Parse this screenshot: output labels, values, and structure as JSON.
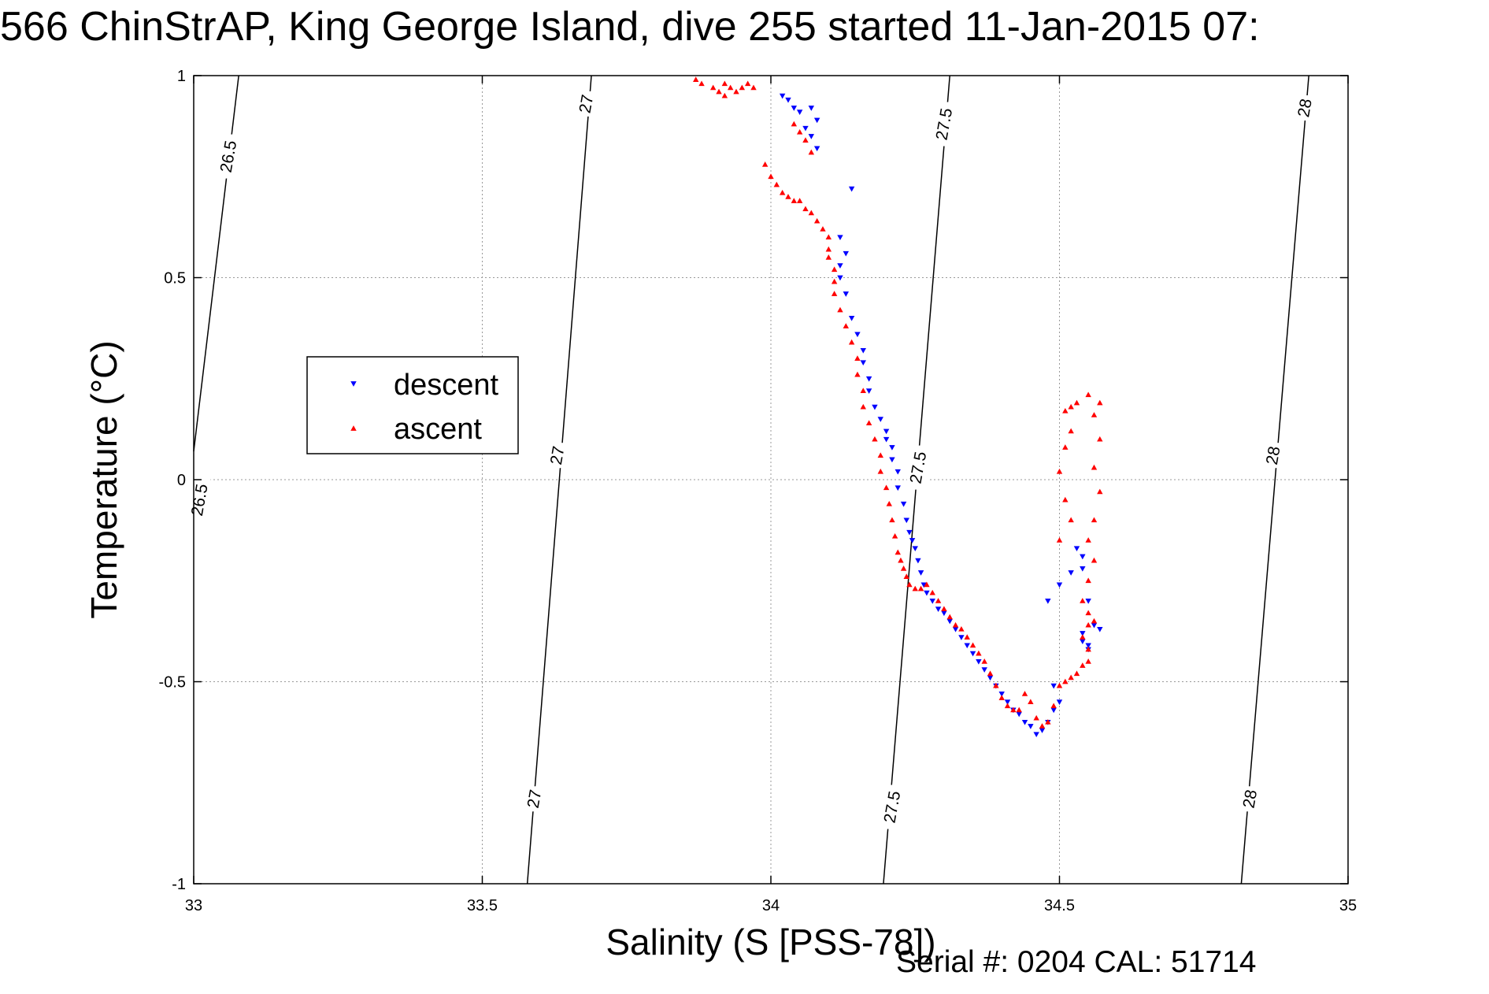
{
  "title": "566 ChinStrAP, King George Island, dive 255 started 11-Jan-2015 07:",
  "footer": "Serial #: 0204  CAL: 51714",
  "colors": {
    "descent": "#0000ff",
    "ascent": "#ff0000",
    "grid": "#999999",
    "contour": "#000000"
  },
  "chart_data": {
    "type": "scatter",
    "xlabel": "Salinity (S [PSS-78])",
    "ylabel": "Temperature (°C)",
    "xlim": [
      33,
      35
    ],
    "ylim": [
      -1,
      1
    ],
    "xticks": [
      "33",
      "33.5",
      "34",
      "34.5",
      "35"
    ],
    "yticks": [
      "1",
      "0.5",
      "0",
      "-0.5",
      "-1"
    ],
    "grid": true,
    "legend": {
      "placement": "left-center",
      "entries": [
        "descent",
        "ascent"
      ]
    },
    "contours": [
      {
        "label": "26.5",
        "points": [
          [
            33.078,
            1.0
          ],
          [
            33.0,
            0.07
          ]
        ]
      },
      {
        "label": "27",
        "points": [
          [
            33.689,
            1.0
          ],
          [
            33.578,
            -1.0
          ]
        ]
      },
      {
        "label": "27.5",
        "points": [
          [
            34.31,
            1.0
          ],
          [
            34.195,
            -1.0
          ]
        ]
      },
      {
        "label": "28",
        "points": [
          [
            34.932,
            1.0
          ],
          [
            34.815,
            -1.0
          ]
        ]
      }
    ],
    "contour_labels": [
      {
        "text": "26.5",
        "x": 33.06,
        "y": 0.8
      },
      {
        "text": "26.5",
        "x": 33.01,
        "y": -0.05
      },
      {
        "text": "27",
        "x": 33.68,
        "y": 0.93
      },
      {
        "text": "27",
        "x": 33.63,
        "y": 0.06
      },
      {
        "text": "27",
        "x": 33.59,
        "y": -0.79
      },
      {
        "text": "27.5",
        "x": 34.3,
        "y": 0.88
      },
      {
        "text": "27.5",
        "x": 34.255,
        "y": 0.03
      },
      {
        "text": "27.5",
        "x": 34.21,
        "y": -0.81
      },
      {
        "text": "28",
        "x": 34.925,
        "y": 0.92
      },
      {
        "text": "28",
        "x": 34.87,
        "y": 0.06
      },
      {
        "text": "28",
        "x": 34.83,
        "y": -0.79
      }
    ],
    "series": [
      {
        "name": "descent",
        "marker": "triangle-down",
        "points": [
          [
            34.02,
            0.95
          ],
          [
            34.03,
            0.94
          ],
          [
            34.04,
            0.92
          ],
          [
            34.05,
            0.91
          ],
          [
            34.07,
            0.92
          ],
          [
            34.08,
            0.89
          ],
          [
            34.06,
            0.87
          ],
          [
            34.07,
            0.85
          ],
          [
            34.08,
            0.82
          ],
          [
            34.14,
            0.72
          ],
          [
            34.12,
            0.6
          ],
          [
            34.13,
            0.56
          ],
          [
            34.12,
            0.53
          ],
          [
            34.12,
            0.5
          ],
          [
            34.13,
            0.46
          ],
          [
            34.14,
            0.4
          ],
          [
            34.15,
            0.36
          ],
          [
            34.16,
            0.32
          ],
          [
            34.16,
            0.29
          ],
          [
            34.17,
            0.25
          ],
          [
            34.17,
            0.22
          ],
          [
            34.18,
            0.18
          ],
          [
            34.19,
            0.15
          ],
          [
            34.2,
            0.12
          ],
          [
            34.2,
            0.1
          ],
          [
            34.21,
            0.08
          ],
          [
            34.21,
            0.05
          ],
          [
            34.22,
            0.02
          ],
          [
            34.22,
            -0.02
          ],
          [
            34.23,
            -0.06
          ],
          [
            34.235,
            -0.1
          ],
          [
            34.24,
            -0.13
          ],
          [
            34.245,
            -0.15
          ],
          [
            34.25,
            -0.17
          ],
          [
            34.255,
            -0.2
          ],
          [
            34.26,
            -0.23
          ],
          [
            34.265,
            -0.26
          ],
          [
            34.27,
            -0.28
          ],
          [
            34.28,
            -0.3
          ],
          [
            34.29,
            -0.32
          ],
          [
            34.3,
            -0.33
          ],
          [
            34.31,
            -0.35
          ],
          [
            34.32,
            -0.37
          ],
          [
            34.33,
            -0.39
          ],
          [
            34.34,
            -0.41
          ],
          [
            34.35,
            -0.43
          ],
          [
            34.36,
            -0.45
          ],
          [
            34.37,
            -0.47
          ],
          [
            34.38,
            -0.49
          ],
          [
            34.39,
            -0.51
          ],
          [
            34.4,
            -0.53
          ],
          [
            34.41,
            -0.55
          ],
          [
            34.42,
            -0.57
          ],
          [
            34.43,
            -0.58
          ],
          [
            34.44,
            -0.6
          ],
          [
            34.45,
            -0.61
          ],
          [
            34.46,
            -0.63
          ],
          [
            34.47,
            -0.62
          ],
          [
            34.48,
            -0.6
          ],
          [
            34.49,
            -0.57
          ],
          [
            34.5,
            -0.55
          ],
          [
            34.49,
            -0.51
          ],
          [
            34.48,
            -0.3
          ],
          [
            34.5,
            -0.26
          ],
          [
            34.52,
            -0.23
          ],
          [
            34.53,
            -0.17
          ],
          [
            34.54,
            -0.19
          ],
          [
            34.54,
            -0.22
          ],
          [
            34.55,
            -0.3
          ],
          [
            34.54,
            -0.38
          ],
          [
            34.55,
            -0.41
          ],
          [
            34.56,
            -0.36
          ],
          [
            34.55,
            -0.42
          ],
          [
            34.54,
            -0.4
          ],
          [
            34.57,
            -0.37
          ]
        ]
      },
      {
        "name": "ascent",
        "marker": "triangle-up",
        "points": [
          [
            33.87,
            0.99
          ],
          [
            33.88,
            0.98
          ],
          [
            33.9,
            0.97
          ],
          [
            33.91,
            0.96
          ],
          [
            33.92,
            0.95
          ],
          [
            33.93,
            0.97
          ],
          [
            33.94,
            0.96
          ],
          [
            33.95,
            0.97
          ],
          [
            33.96,
            0.98
          ],
          [
            33.97,
            0.97
          ],
          [
            33.92,
            0.98
          ],
          [
            34.04,
            0.88
          ],
          [
            34.05,
            0.86
          ],
          [
            34.06,
            0.84
          ],
          [
            34.07,
            0.81
          ],
          [
            33.99,
            0.78
          ],
          [
            34.0,
            0.75
          ],
          [
            34.01,
            0.73
          ],
          [
            34.02,
            0.71
          ],
          [
            34.03,
            0.7
          ],
          [
            34.04,
            0.69
          ],
          [
            34.05,
            0.69
          ],
          [
            34.06,
            0.67
          ],
          [
            34.07,
            0.66
          ],
          [
            34.08,
            0.64
          ],
          [
            34.09,
            0.62
          ],
          [
            34.1,
            0.6
          ],
          [
            34.1,
            0.57
          ],
          [
            34.1,
            0.55
          ],
          [
            34.11,
            0.52
          ],
          [
            34.11,
            0.49
          ],
          [
            34.11,
            0.46
          ],
          [
            34.12,
            0.42
          ],
          [
            34.13,
            0.38
          ],
          [
            34.14,
            0.34
          ],
          [
            34.15,
            0.3
          ],
          [
            34.15,
            0.26
          ],
          [
            34.16,
            0.22
          ],
          [
            34.16,
            0.18
          ],
          [
            34.17,
            0.14
          ],
          [
            34.18,
            0.1
          ],
          [
            34.19,
            0.06
          ],
          [
            34.19,
            0.02
          ],
          [
            34.2,
            -0.02
          ],
          [
            34.205,
            -0.06
          ],
          [
            34.21,
            -0.1
          ],
          [
            34.215,
            -0.14
          ],
          [
            34.22,
            -0.18
          ],
          [
            34.225,
            -0.2
          ],
          [
            34.23,
            -0.22
          ],
          [
            34.235,
            -0.24
          ],
          [
            34.24,
            -0.26
          ],
          [
            34.25,
            -0.27
          ],
          [
            34.26,
            -0.27
          ],
          [
            34.27,
            -0.26
          ],
          [
            34.28,
            -0.28
          ],
          [
            34.29,
            -0.3
          ],
          [
            34.3,
            -0.32
          ],
          [
            34.31,
            -0.34
          ],
          [
            34.32,
            -0.36
          ],
          [
            34.33,
            -0.37
          ],
          [
            34.34,
            -0.39
          ],
          [
            34.35,
            -0.41
          ],
          [
            34.36,
            -0.43
          ],
          [
            34.37,
            -0.45
          ],
          [
            34.38,
            -0.48
          ],
          [
            34.39,
            -0.51
          ],
          [
            34.4,
            -0.54
          ],
          [
            34.41,
            -0.56
          ],
          [
            34.42,
            -0.57
          ],
          [
            34.43,
            -0.57
          ],
          [
            34.44,
            -0.53
          ],
          [
            34.45,
            -0.55
          ],
          [
            34.46,
            -0.59
          ],
          [
            34.47,
            -0.61
          ],
          [
            34.48,
            -0.6
          ],
          [
            34.49,
            -0.56
          ],
          [
            34.5,
            -0.51
          ],
          [
            34.51,
            -0.5
          ],
          [
            34.52,
            -0.49
          ],
          [
            34.53,
            -0.48
          ],
          [
            34.54,
            -0.46
          ],
          [
            34.55,
            -0.45
          ],
          [
            34.55,
            -0.42
          ],
          [
            34.54,
            -0.39
          ],
          [
            34.55,
            -0.36
          ],
          [
            34.56,
            -0.35
          ],
          [
            34.55,
            -0.33
          ],
          [
            34.54,
            -0.3
          ],
          [
            34.55,
            -0.25
          ],
          [
            34.56,
            -0.2
          ],
          [
            34.55,
            -0.15
          ],
          [
            34.56,
            -0.1
          ],
          [
            34.57,
            -0.03
          ],
          [
            34.56,
            0.03
          ],
          [
            34.57,
            0.1
          ],
          [
            34.56,
            0.16
          ],
          [
            34.57,
            0.19
          ],
          [
            34.55,
            0.21
          ],
          [
            34.53,
            0.19
          ],
          [
            34.52,
            0.18
          ],
          [
            34.51,
            0.17
          ],
          [
            34.52,
            0.12
          ],
          [
            34.51,
            0.08
          ],
          [
            34.5,
            0.02
          ],
          [
            34.51,
            -0.05
          ],
          [
            34.52,
            -0.1
          ],
          [
            34.5,
            -0.15
          ]
        ]
      }
    ]
  }
}
